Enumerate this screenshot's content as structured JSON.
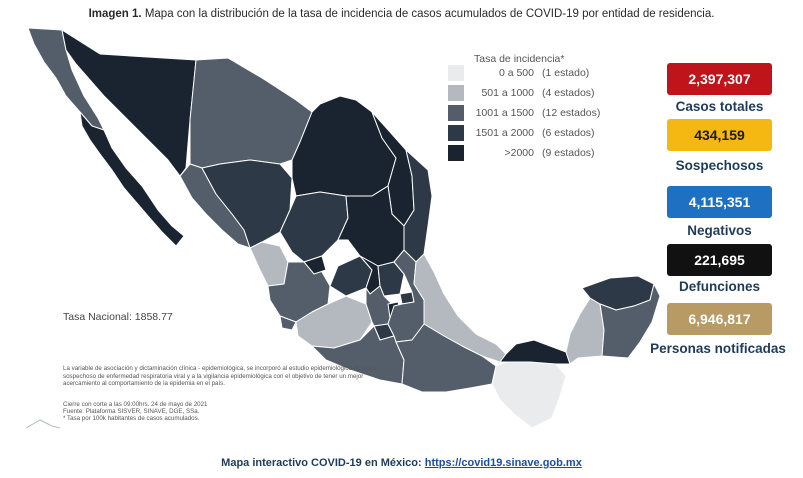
{
  "title": {
    "bold": "Imagen 1.",
    "text": "Mapa con la distribución de la tasa de incidencia de casos acumulados de COVID-19 por entidad de residencia."
  },
  "legend": {
    "title": "Tasa de incidencia*",
    "items": [
      {
        "range": "0 a 500",
        "count": "(1 estado)",
        "color": "#e9ebed"
      },
      {
        "range": "501 a 1000",
        "count": "(4 estados)",
        "color": "#b4b9bf"
      },
      {
        "range": "1001 a 1500",
        "count": "(12 estados)",
        "color": "#545e6a"
      },
      {
        "range": "1501 a 2000",
        "count": "(6 estados)",
        "color": "#2e3947"
      },
      {
        "range": ">2000",
        "count": "(9 estados)",
        "color": "#1a2430"
      }
    ]
  },
  "stats": [
    {
      "value": "2,397,307",
      "label": "Casos totales",
      "color": "#c0141b"
    },
    {
      "value": "434,159",
      "label": "Sospechosos",
      "color": "#f5b711"
    },
    {
      "value": "4,115,351",
      "label": "Negativos",
      "color": "#1e71c2"
    },
    {
      "value": "221,695",
      "label": "Defunciones",
      "color": "#111111"
    },
    {
      "value": "6,946,817",
      "label": "Personas notificadas",
      "color": "#b89a64"
    }
  ],
  "national_rate": "Tasa Nacional: 1858.77",
  "notes": {
    "paragraph": "La variable de asociación y dictaminación clínica - epidemiológica, se incorporó al estudio epidemiológico de caso sospechoso de enfermedad respiratoria viral y a la vigilancia epidemiológica con el objetivo de tener un mejor acercamiento al comportamiento de la epidemia en el país.",
    "cutoff": "Cierre con corte a las 09:00hrs. 24 de mayo de 2021",
    "source": "Fuente: Plataforma SISVER, SINAVE, DGE, SSa.",
    "footnote": "* Tasa por 100k habitantes de casos acumulados."
  },
  "footer": {
    "text": "Mapa interactivo COVID-19 en México:",
    "link": "https://covid19.sinave.gob.mx"
  },
  "map_colors": {
    "scale_0_500": "#e9ebed",
    "scale_501_1000": "#b4b9bf",
    "scale_1001_1500": "#545e6a",
    "scale_1501_2000": "#2e3947",
    "scale_over_2000": "#1a2430",
    "borders": "#ffffff"
  }
}
